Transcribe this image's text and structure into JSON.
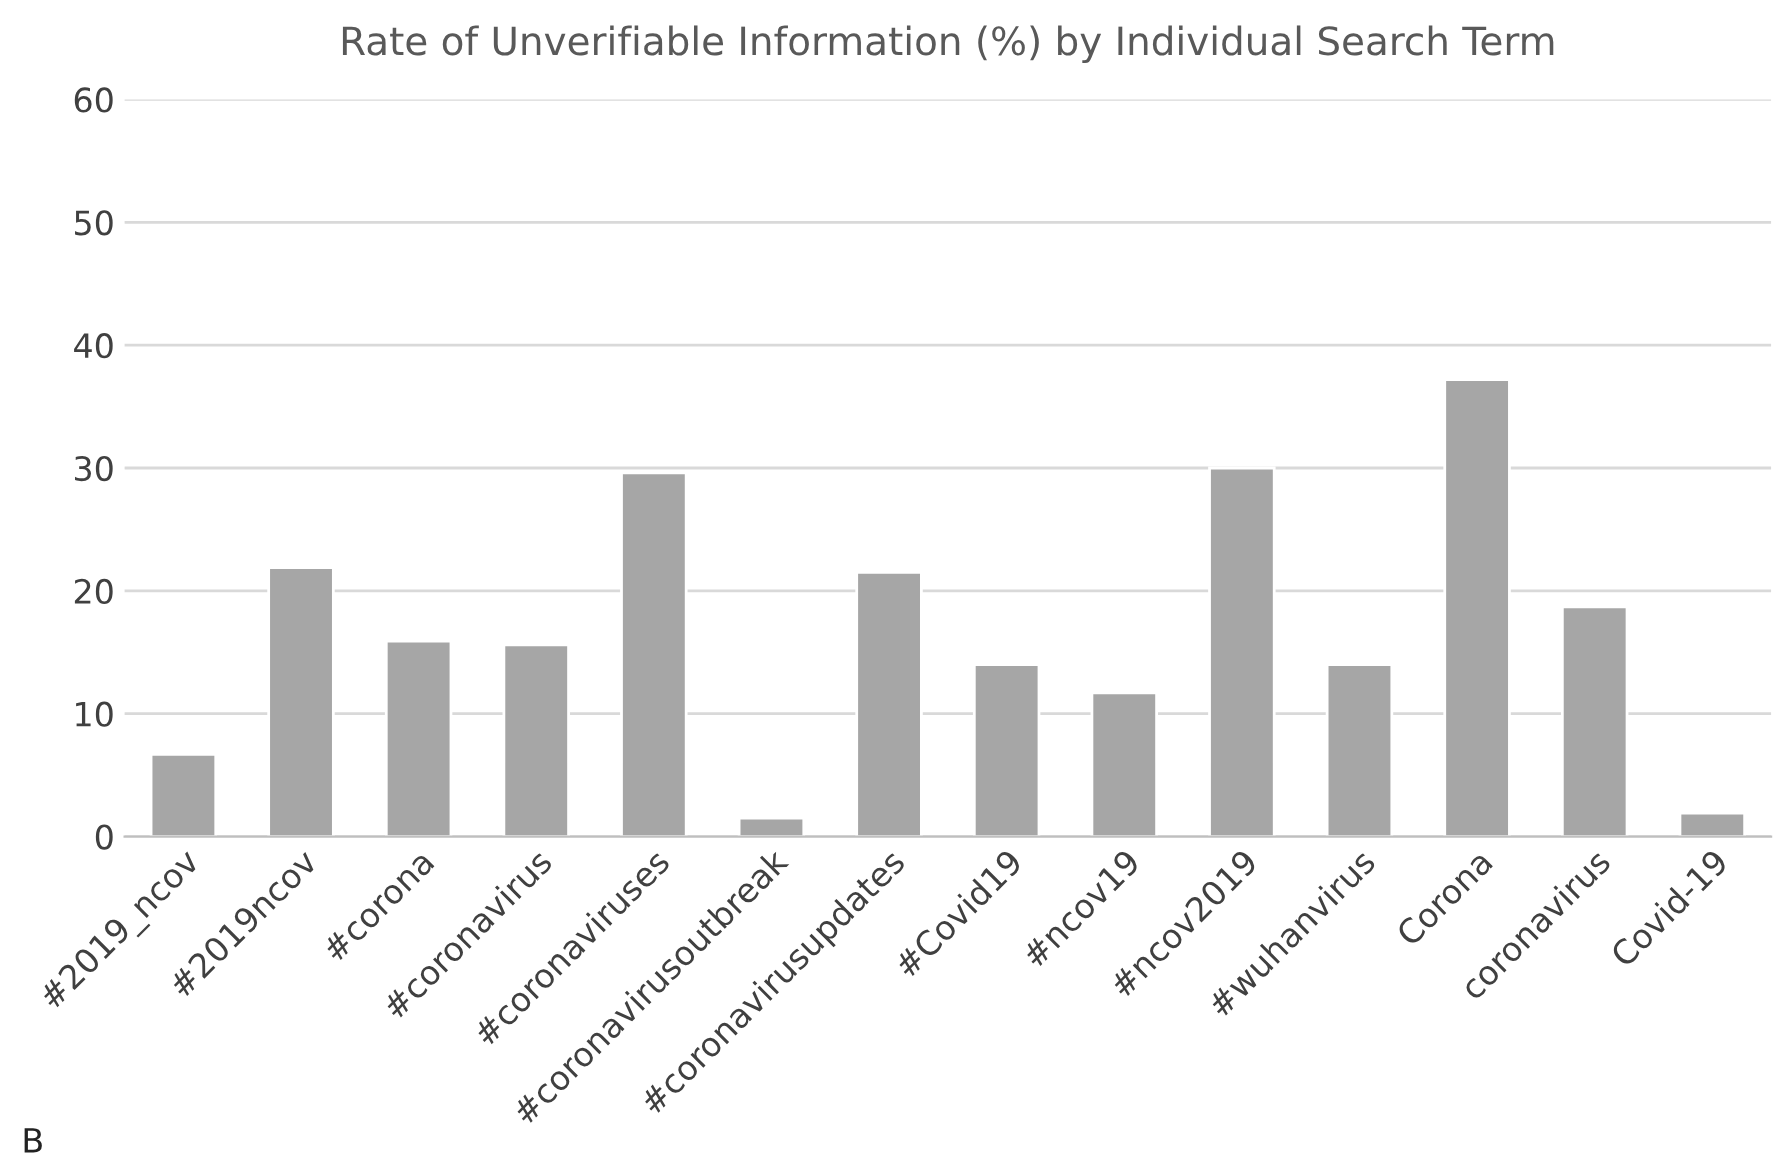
{
  "chart_data": {
    "type": "bar",
    "title": "Rate of Unverifiable Information (%) by Individual Search Term",
    "categories": [
      "#2019_ncov",
      "#2019ncov",
      "#corona",
      "#coronavirus",
      "#coronaviruses",
      "#coronavirusoutbreak",
      "#coronavirusupdates",
      "#Covid19",
      "#ncov19",
      "#ncov2019",
      "#wuhanvirus",
      "Corona",
      "coronavirus",
      "Covid-19"
    ],
    "values": [
      6.7,
      21.9,
      15.9,
      15.6,
      29.6,
      1.5,
      21.5,
      14.0,
      11.7,
      30.0,
      14.0,
      37.2,
      18.7,
      1.9
    ],
    "color": "#a6a6a6",
    "ylim": [
      0,
      60
    ],
    "yticks": [
      0,
      10,
      20,
      30,
      40,
      50,
      60
    ],
    "grid": "y",
    "annotations": [
      "B"
    ]
  }
}
